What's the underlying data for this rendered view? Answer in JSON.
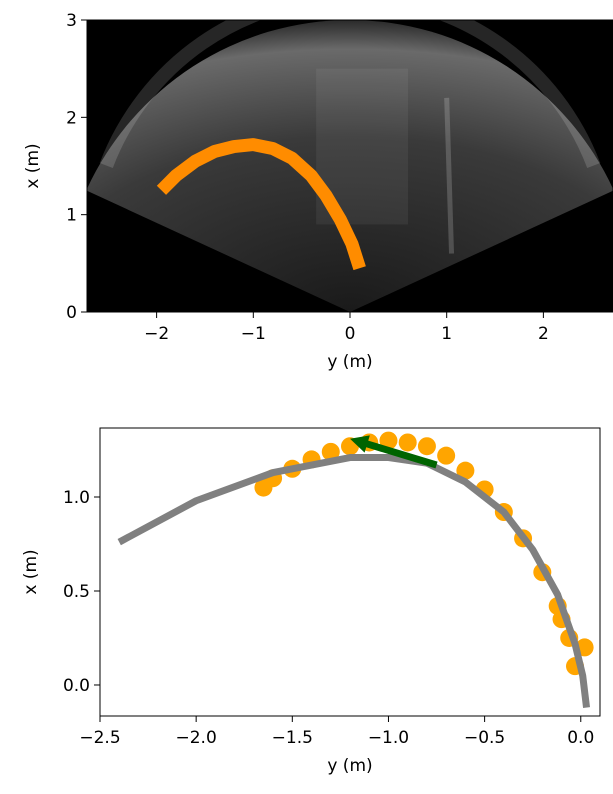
{
  "chart_data": [
    {
      "type": "image-overlay",
      "x_label": "y (m)",
      "y_label": "x (m)",
      "xlim": [
        -2.72,
        2.72
      ],
      "ylim": [
        0,
        3
      ],
      "xticks": [
        {
          "value": -2,
          "label": "−2"
        },
        {
          "value": -1,
          "label": "−1"
        },
        0,
        1,
        2
      ],
      "yticks": [
        0,
        1,
        2,
        3
      ],
      "series": [
        {
          "color": "#ff8c00",
          "x": [
            -1.95,
            -1.8,
            -1.6,
            -1.4,
            -1.2,
            -1.0,
            -0.8,
            -0.6,
            -0.4,
            -0.25,
            -0.1,
            0.02,
            0.1
          ],
          "values": [
            1.25,
            1.4,
            1.55,
            1.65,
            1.7,
            1.72,
            1.68,
            1.58,
            1.4,
            1.2,
            0.95,
            0.7,
            0.45
          ]
        }
      ]
    },
    {
      "type": "scatter-line",
      "x_label": "y (m)",
      "y_label": "x (m)",
      "xlim": [
        -2.5,
        0.1
      ],
      "ylim": [
        -0.165,
        1.367
      ],
      "xticks": [
        {
          "value": -2.5,
          "label": "−2.5"
        },
        {
          "value": -2.0,
          "label": "−2.0"
        },
        {
          "value": -1.5,
          "label": "−1.5"
        },
        {
          "value": -1.0,
          "label": "−1.0"
        },
        {
          "value": -0.5,
          "label": "−0.5"
        },
        {
          "value": 0.0,
          "label": "0.0"
        }
      ],
      "yticks": [
        {
          "value": 0.0,
          "label": "0.0"
        },
        0.5,
        {
          "value": 1.0,
          "label": "1.0"
        }
      ],
      "series": [
        {
          "kind": "scatter",
          "color": "#ffa500",
          "x": [
            -1.65,
            -1.6,
            -1.5,
            -1.4,
            -1.3,
            -1.2,
            -1.1,
            -1.0,
            -0.9,
            -0.8,
            -0.7,
            -0.6,
            -0.5,
            -0.4,
            -0.3,
            -0.2,
            -0.12,
            -0.06,
            -0.03,
            0.02,
            -0.1
          ],
          "values": [
            1.05,
            1.1,
            1.15,
            1.2,
            1.24,
            1.27,
            1.29,
            1.3,
            1.29,
            1.27,
            1.22,
            1.14,
            1.04,
            0.92,
            0.78,
            0.6,
            0.42,
            0.25,
            0.1,
            0.2,
            0.35
          ]
        },
        {
          "kind": "line",
          "color": "#808080",
          "x": [
            -2.4,
            -2.0,
            -1.6,
            -1.2,
            -1.0,
            -0.8,
            -0.6,
            -0.4,
            -0.25,
            -0.12,
            -0.03,
            0.01,
            0.03
          ],
          "values": [
            0.76,
            0.98,
            1.13,
            1.21,
            1.21,
            1.18,
            1.08,
            0.92,
            0.72,
            0.48,
            0.22,
            0.05,
            -0.12
          ]
        }
      ],
      "arrow": {
        "color": "#006400",
        "x": [
          -0.75,
          -1.2
        ],
        "values": [
          1.17,
          1.31
        ]
      }
    }
  ]
}
